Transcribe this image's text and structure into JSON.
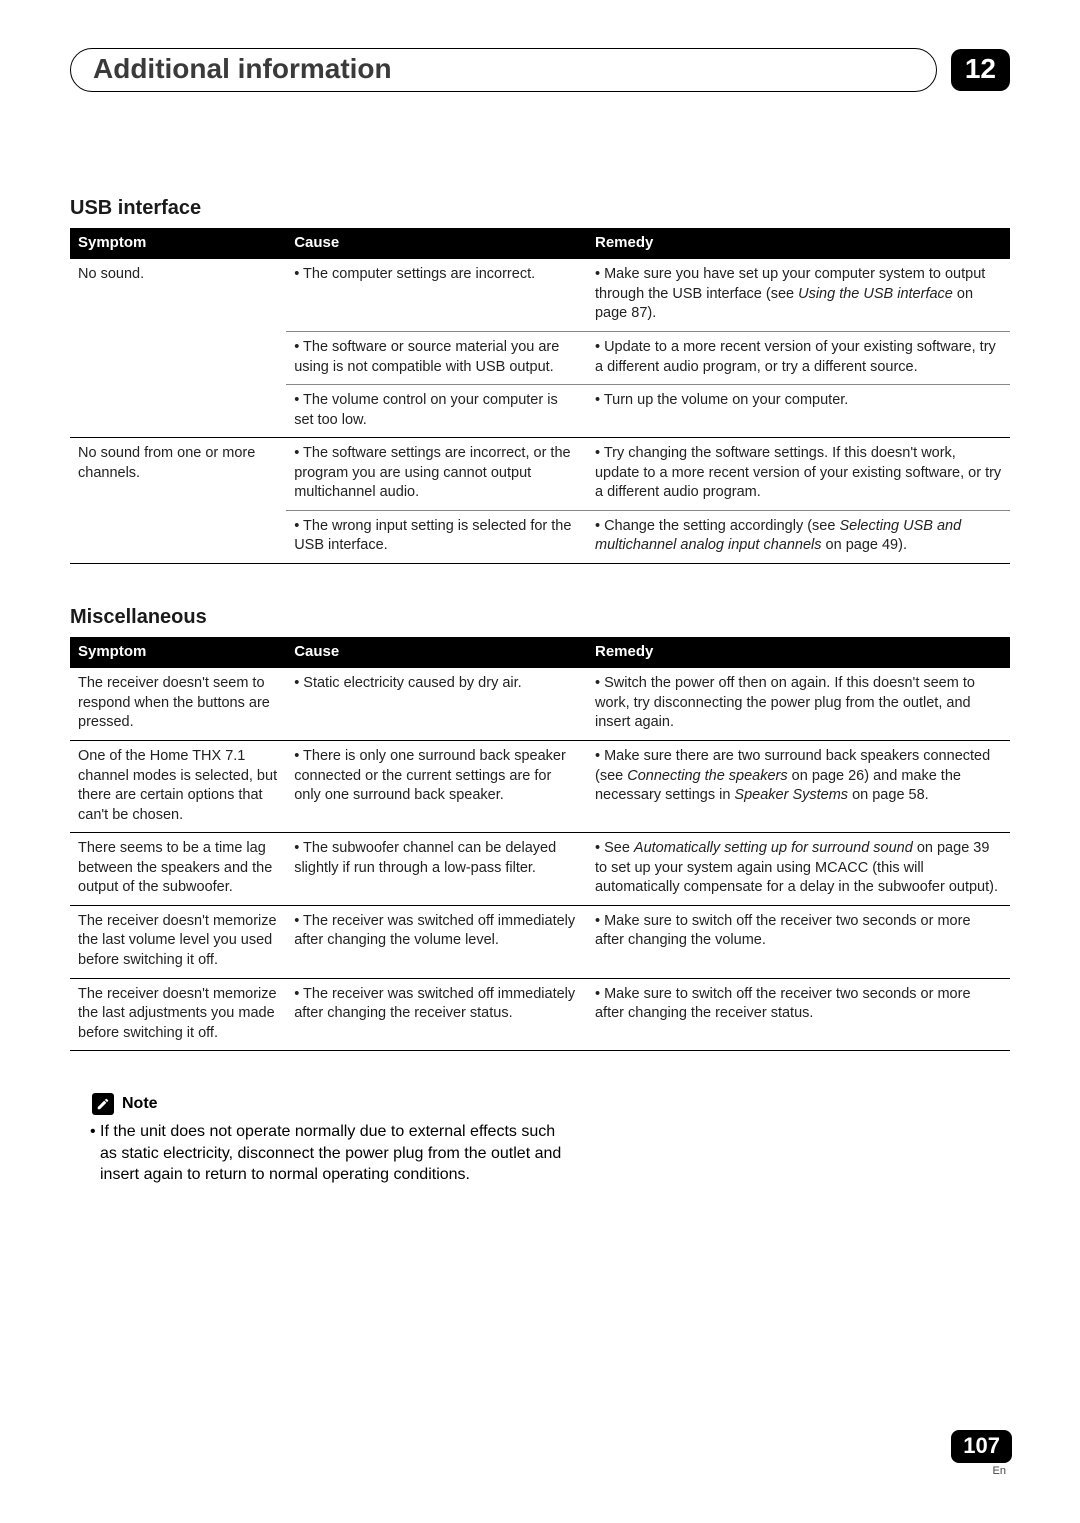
{
  "colors": {
    "header_bg": "#000000",
    "header_text": "#ffffff",
    "body_text": "#222222",
    "rule_thick": "#000000",
    "rule_thin": "#888888",
    "bg": "#ffffff"
  },
  "typography": {
    "body_pt": 14.5,
    "section_title_pt": 20,
    "header_title_pt": 28,
    "note_pt": 16
  },
  "header": {
    "title": "Additional information",
    "chapter": "12"
  },
  "sections": [
    {
      "title": "USB interface",
      "columns": [
        "Symptom",
        "Cause",
        "Remedy"
      ],
      "rows": [
        {
          "symptom": "No sound.",
          "rowspan": 3,
          "cause": "• The computer settings are incorrect.",
          "remedy_parts": [
            {
              "t": "• Make sure you have set up your computer system to output through the USB interface (see "
            },
            {
              "t": "Using the USB interface",
              "i": true
            },
            {
              "t": " on page 87)."
            }
          ]
        },
        {
          "cause": "• The software or source material you are using is not compatible with USB output.",
          "remedy_parts": [
            {
              "t": "• Update to a more recent version of your existing software, try a different audio program, or try a different source."
            }
          ]
        },
        {
          "cause": "• The volume control on your computer is set too low.",
          "remedy_parts": [
            {
              "t": "• Turn up the volume on your computer."
            }
          ]
        },
        {
          "symptom": "No sound from one or more channels.",
          "rowspan": 2,
          "cause": "• The software settings are incorrect, or the program you are using cannot output multichannel audio.",
          "remedy_parts": [
            {
              "t": "• Try changing the software settings. If this doesn't work, update to a more recent version of your existing software, or try a different audio program."
            }
          ]
        },
        {
          "cause": "• The wrong input setting is selected for the USB interface.",
          "remedy_parts": [
            {
              "t": "• Change the setting accordingly (see "
            },
            {
              "t": "Selecting USB and multichannel analog input channels",
              "i": true
            },
            {
              "t": " on page 49)."
            }
          ]
        }
      ]
    },
    {
      "title": "Miscellaneous",
      "columns": [
        "Symptom",
        "Cause",
        "Remedy"
      ],
      "rows": [
        {
          "symptom": "The receiver doesn't seem to respond when the buttons are pressed.",
          "rowspan": 1,
          "cause": "• Static electricity caused by dry air.",
          "remedy_parts": [
            {
              "t": "• Switch the power off then on again. If this doesn't seem to work, try disconnecting the power plug from the outlet, and insert again."
            }
          ]
        },
        {
          "symptom": "One of the Home THX 7.1 channel modes is selected, but there are certain options that can't be chosen.",
          "rowspan": 1,
          "cause": "• There is only one surround back speaker connected or the current settings are for only one surround back speaker.",
          "remedy_parts": [
            {
              "t": "• Make sure there are two surround back speakers connected (see "
            },
            {
              "t": "Connecting the speakers",
              "i": true
            },
            {
              "t": " on page 26) and make the necessary settings in "
            },
            {
              "t": "Speaker Systems",
              "i": true
            },
            {
              "t": " on page 58."
            }
          ]
        },
        {
          "symptom": "There seems to be a time lag between the speakers and the output of the subwoofer.",
          "rowspan": 1,
          "cause": "• The subwoofer channel can be delayed slightly if run through a low-pass filter.",
          "remedy_parts": [
            {
              "t": "• See "
            },
            {
              "t": "Automatically setting up for surround sound",
              "i": true
            },
            {
              "t": " on page 39 to set up your system again using MCACC (this will automatically compensate for a delay in the subwoofer output)."
            }
          ]
        },
        {
          "symptom": "The receiver doesn't memorize the last volume level you used before switching it off.",
          "rowspan": 1,
          "cause": "• The receiver was switched off immediately after changing the volume level.",
          "remedy_parts": [
            {
              "t": "• Make sure to switch off the receiver two seconds or more after changing the volume."
            }
          ]
        },
        {
          "symptom": "The receiver doesn't memorize the last adjustments you made before switching it off.",
          "rowspan": 1,
          "cause": "• The receiver was switched off immediately after changing the receiver status.",
          "remedy_parts": [
            {
              "t": "• Make sure to switch off the receiver two seconds or more after changing the receiver status."
            }
          ]
        }
      ]
    }
  ],
  "note": {
    "label": "Note",
    "text": "• If the unit does not operate normally due to external effects such as static electricity, disconnect the power plug from the outlet and insert again to return to normal operating conditions."
  },
  "footer": {
    "page": "107",
    "lang": "En"
  }
}
